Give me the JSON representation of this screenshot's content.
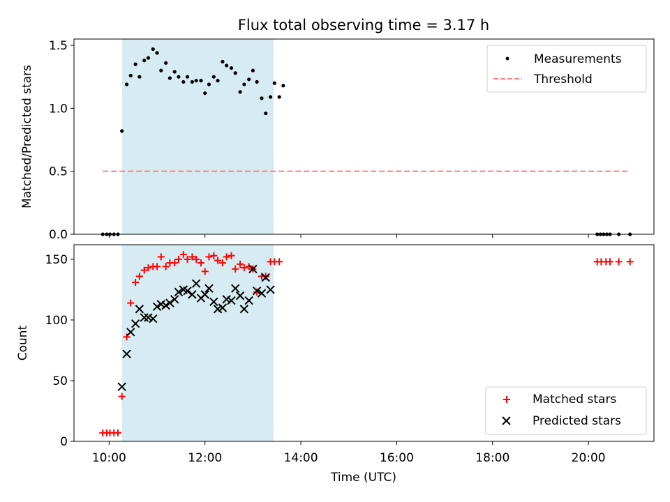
{
  "title": "Flux total observing time = 3.17 h",
  "colors": {
    "measurement": "#000000",
    "threshold": "#ff7f7f",
    "matched": "#ff0000",
    "predicted": "#000000",
    "highlight": "#add8e6"
  },
  "chart_data": [
    {
      "type": "scatter",
      "panel": "top",
      "ylabel": "Matched/Predicted stars",
      "xlabel": "",
      "ylim": [
        0,
        1.55
      ],
      "yticks": [
        0.0,
        0.5,
        1.0,
        1.5
      ],
      "ytick_labels": [
        "0.0",
        "0.5",
        "1.0",
        "1.5"
      ],
      "highlight_span": [
        "10:16",
        "13:26"
      ],
      "legend_position": "top-right",
      "legend": [
        "Measurements",
        "Threshold"
      ],
      "series": [
        {
          "name": "Measurements",
          "marker": "dot",
          "points": [
            [
              "09:52",
              0.0
            ],
            [
              "09:57",
              0.0
            ],
            [
              "10:01",
              0.0
            ],
            [
              "10:06",
              0.0
            ],
            [
              "10:11",
              0.0
            ],
            [
              "10:16",
              0.82
            ],
            [
              "10:22",
              1.19
            ],
            [
              "10:27",
              1.26
            ],
            [
              "10:33",
              1.35
            ],
            [
              "10:38",
              1.25
            ],
            [
              "10:44",
              1.38
            ],
            [
              "10:49",
              1.4
            ],
            [
              "10:55",
              1.47
            ],
            [
              "11:00",
              1.44
            ],
            [
              "11:05",
              1.3
            ],
            [
              "11:11",
              1.36
            ],
            [
              "11:16",
              1.24
            ],
            [
              "11:22",
              1.29
            ],
            [
              "11:27",
              1.25
            ],
            [
              "11:33",
              1.21
            ],
            [
              "11:38",
              1.25
            ],
            [
              "11:44",
              1.21
            ],
            [
              "11:49",
              1.22
            ],
            [
              "11:55",
              1.22
            ],
            [
              "12:00",
              1.12
            ],
            [
              "12:05",
              1.19
            ],
            [
              "12:11",
              1.25
            ],
            [
              "12:16",
              1.22
            ],
            [
              "12:22",
              1.37
            ],
            [
              "12:27",
              1.34
            ],
            [
              "12:33",
              1.32
            ],
            [
              "12:38",
              1.28
            ],
            [
              "12:44",
              1.13
            ],
            [
              "12:49",
              1.19
            ],
            [
              "12:55",
              1.23
            ],
            [
              "13:00",
              1.3
            ],
            [
              "13:05",
              1.21
            ],
            [
              "13:11",
              1.08
            ],
            [
              "13:16",
              0.96
            ],
            [
              "13:22",
              1.09
            ],
            [
              "13:27",
              1.2
            ],
            [
              "13:33",
              1.09
            ],
            [
              "13:38",
              1.18
            ],
            [
              "20:11",
              0.0
            ],
            [
              "20:15",
              0.0
            ],
            [
              "20:19",
              0.0
            ],
            [
              "20:23",
              0.0
            ],
            [
              "20:27",
              0.0
            ],
            [
              "20:38",
              0.0
            ],
            [
              "20:52",
              0.0
            ]
          ]
        },
        {
          "name": "Threshold",
          "style": "dashed",
          "points": [
            [
              "09:52",
              0.5
            ],
            [
              "20:52",
              0.5
            ]
          ]
        }
      ]
    },
    {
      "type": "scatter",
      "panel": "bottom",
      "xlabel": "Time (UTC)",
      "ylabel": "Count",
      "ylim": [
        0,
        162
      ],
      "yticks": [
        0,
        50,
        100,
        150
      ],
      "ytick_labels": [
        "0",
        "50",
        "100",
        "150"
      ],
      "xlim": [
        "09:16",
        "21:22"
      ],
      "xticks": [
        "10:00",
        "12:00",
        "14:00",
        "16:00",
        "18:00",
        "20:00"
      ],
      "highlight_span": [
        "10:16",
        "13:26"
      ],
      "legend_position": "bottom-right",
      "legend": [
        "Matched stars",
        "Predicted stars"
      ],
      "series": [
        {
          "name": "Matched stars",
          "marker": "plus",
          "points": [
            [
              "09:52",
              7
            ],
            [
              "09:57",
              7
            ],
            [
              "10:01",
              7
            ],
            [
              "10:06",
              7
            ],
            [
              "10:11",
              7
            ],
            [
              "10:16",
              37
            ],
            [
              "10:22",
              86
            ],
            [
              "10:27",
              114
            ],
            [
              "10:33",
              131
            ],
            [
              "10:38",
              136
            ],
            [
              "10:44",
              141
            ],
            [
              "10:49",
              143
            ],
            [
              "10:55",
              144
            ],
            [
              "11:00",
              144
            ],
            [
              "11:05",
              152
            ],
            [
              "11:11",
              144
            ],
            [
              "11:16",
              147
            ],
            [
              "11:22",
              147
            ],
            [
              "11:27",
              150
            ],
            [
              "11:33",
              154
            ],
            [
              "11:38",
              150
            ],
            [
              "11:44",
              152
            ],
            [
              "11:49",
              150
            ],
            [
              "11:55",
              147
            ],
            [
              "12:00",
              140
            ],
            [
              "12:05",
              152
            ],
            [
              "12:11",
              153
            ],
            [
              "12:16",
              149
            ],
            [
              "12:22",
              147
            ],
            [
              "12:27",
              152
            ],
            [
              "12:33",
              153
            ],
            [
              "12:38",
              142
            ],
            [
              "12:44",
              146
            ],
            [
              "12:49",
              143
            ],
            [
              "12:55",
              144
            ],
            [
              "13:00",
              142
            ],
            [
              "13:05",
              123
            ],
            [
              "13:11",
              136
            ],
            [
              "13:16",
              136
            ],
            [
              "13:22",
              148
            ],
            [
              "13:27",
              148
            ],
            [
              "13:33",
              148
            ],
            [
              "20:11",
              148
            ],
            [
              "20:16",
              148
            ],
            [
              "20:22",
              148
            ],
            [
              "20:27",
              148
            ],
            [
              "20:38",
              148
            ],
            [
              "20:52",
              148
            ]
          ]
        },
        {
          "name": "Predicted stars",
          "marker": "x",
          "points": [
            [
              "10:16",
              45
            ],
            [
              "10:22",
              72
            ],
            [
              "10:27",
              90
            ],
            [
              "10:33",
              97
            ],
            [
              "10:38",
              109
            ],
            [
              "10:44",
              102
            ],
            [
              "10:49",
              102
            ],
            [
              "10:55",
              101
            ],
            [
              "11:00",
              111
            ],
            [
              "11:05",
              113
            ],
            [
              "11:11",
              112
            ],
            [
              "11:16",
              114
            ],
            [
              "11:22",
              117
            ],
            [
              "11:27",
              123
            ],
            [
              "11:33",
              125
            ],
            [
              "11:38",
              124
            ],
            [
              "11:44",
              121
            ],
            [
              "11:49",
              130
            ],
            [
              "11:55",
              118
            ],
            [
              "12:00",
              121
            ],
            [
              "12:05",
              126
            ],
            [
              "12:11",
              115
            ],
            [
              "12:16",
              109
            ],
            [
              "12:22",
              110
            ],
            [
              "12:27",
              117
            ],
            [
              "12:33",
              116
            ],
            [
              "12:38",
              126
            ],
            [
              "12:44",
              120
            ],
            [
              "12:49",
              109
            ],
            [
              "12:55",
              116
            ],
            [
              "13:00",
              142
            ],
            [
              "13:05",
              124
            ],
            [
              "13:11",
              122
            ],
            [
              "13:16",
              135
            ],
            [
              "13:22",
              125
            ]
          ]
        }
      ]
    }
  ]
}
